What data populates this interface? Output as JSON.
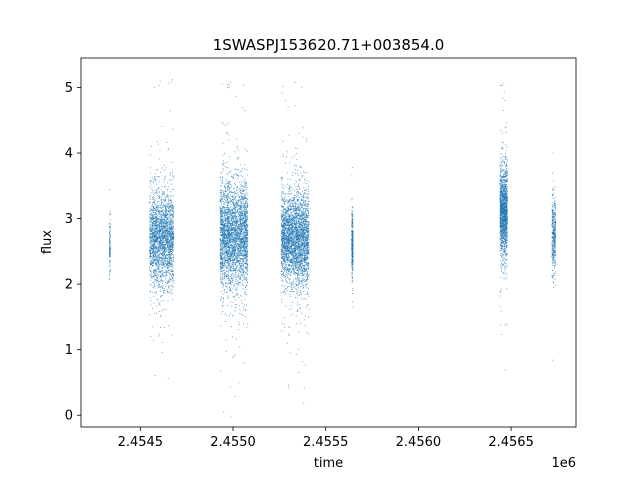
{
  "chart_data": {
    "type": "scatter",
    "title": "1SWASPJ153620.71+003854.0",
    "xlabel": "time",
    "ylabel": "flux",
    "x_offset_label": "1e6",
    "xlim": [
      2.45418,
      2.45685
    ],
    "ylim": [
      -0.18,
      5.45
    ],
    "x_ticks": [
      2.4545,
      2.455,
      2.4555,
      2.456,
      2.4565
    ],
    "x_tick_labels": [
      "2.4545",
      "2.4550",
      "2.4555",
      "2.4560",
      "2.4565"
    ],
    "y_ticks": [
      0,
      1,
      2,
      3,
      4,
      5
    ],
    "y_tick_labels": [
      "0",
      "1",
      "2",
      "3",
      "4",
      "5"
    ],
    "grid": false,
    "marker_color": "#1f77b4",
    "series": [
      {
        "clusters": [
          {
            "x_start": 2.454333,
            "x_end": 2.454338,
            "y_center": 2.6,
            "y_spread": 0.35,
            "weight": 0.3
          },
          {
            "x_start": 2.45455,
            "x_end": 2.45468,
            "y_center": 2.7,
            "y_spread": 0.65,
            "weight": 6
          },
          {
            "x_start": 2.45493,
            "x_end": 2.45508,
            "y_center": 2.75,
            "y_spread": 0.7,
            "weight": 8
          },
          {
            "x_start": 2.45526,
            "x_end": 2.45541,
            "y_center": 2.7,
            "y_spread": 0.65,
            "weight": 8
          },
          {
            "x_start": 2.45564,
            "x_end": 2.455648,
            "y_center": 2.6,
            "y_spread": 0.45,
            "weight": 0.8
          },
          {
            "x_start": 2.45644,
            "x_end": 2.45648,
            "y_center": 3.1,
            "y_spread": 0.6,
            "weight": 4
          },
          {
            "x_start": 2.45672,
            "x_end": 2.45674,
            "y_center": 2.75,
            "y_spread": 0.5,
            "weight": 1
          }
        ]
      }
    ]
  }
}
